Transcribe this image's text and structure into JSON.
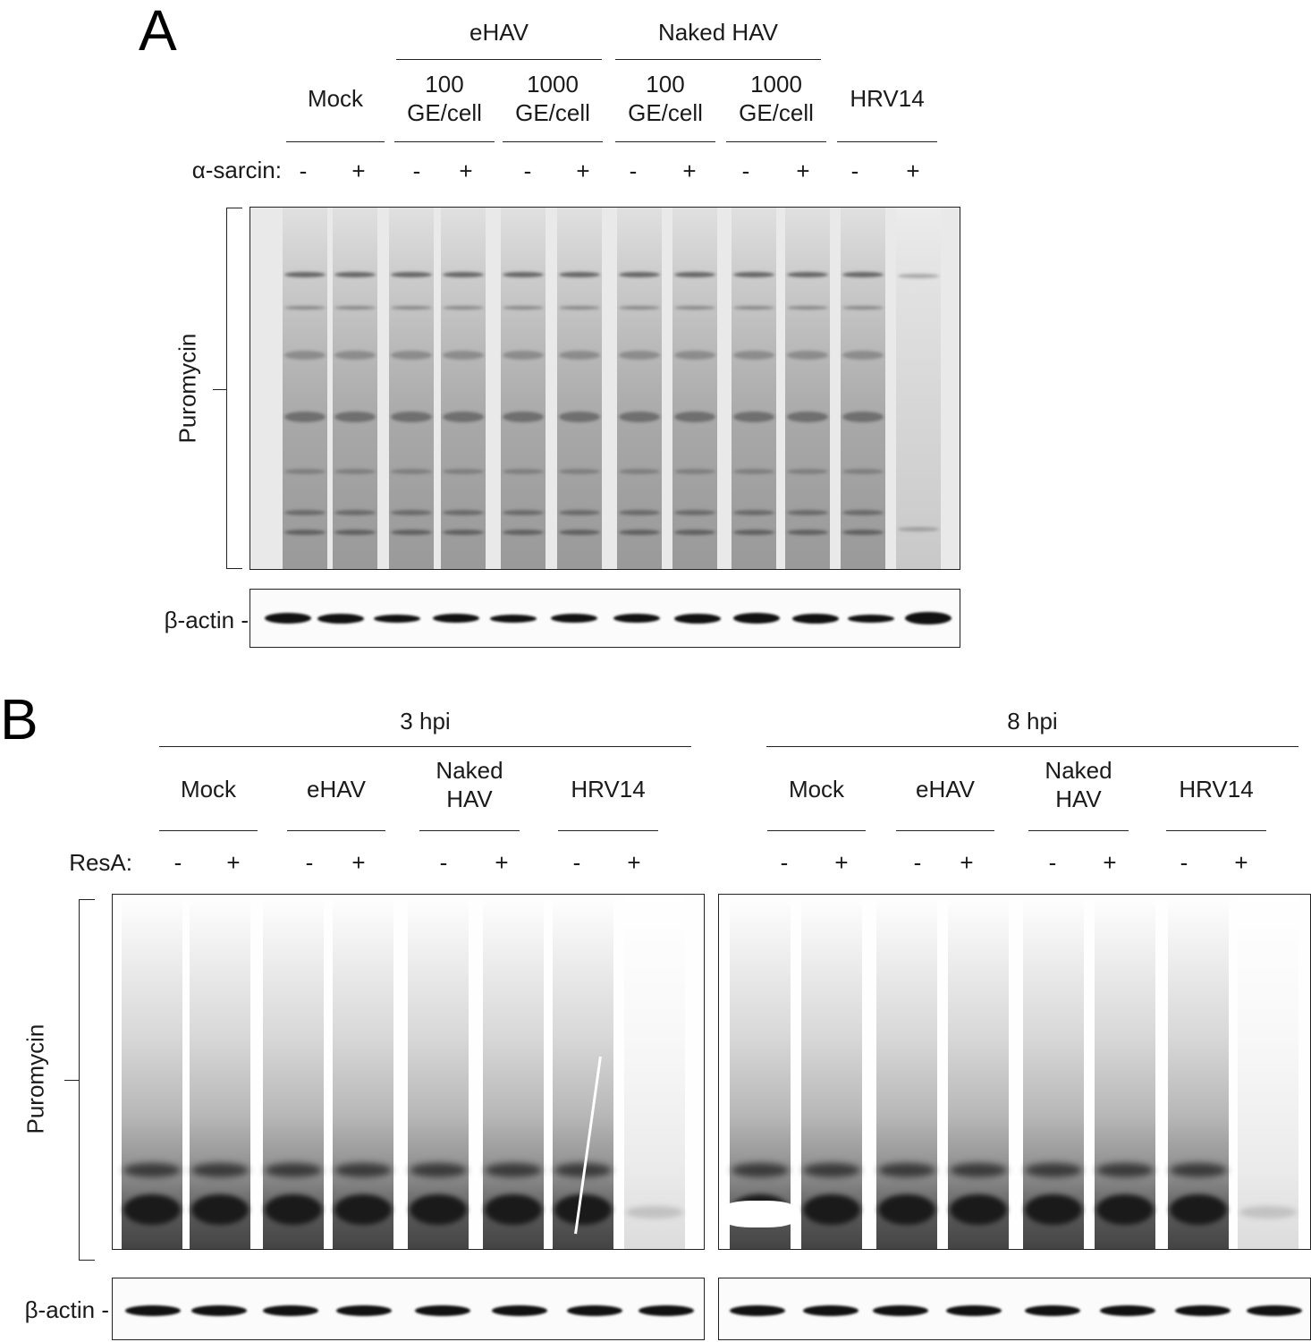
{
  "panel_a": {
    "letter": "A",
    "groups": [
      {
        "id": "ehav",
        "label": "eHAV"
      },
      {
        "id": "naked",
        "label": "Naked  HAV"
      }
    ],
    "conditions": [
      {
        "label": "Mock"
      },
      {
        "label": "100\nGE/cell"
      },
      {
        "label": "1000\nGE/cell"
      },
      {
        "label": "100\nGE/cell"
      },
      {
        "label": "1000\nGE/cell"
      },
      {
        "label": "HRV14"
      }
    ],
    "treatment_label": "α-sarcin:",
    "treatment_marks": [
      "-",
      "+",
      "-",
      "+",
      "-",
      "+",
      "-",
      "+",
      "-",
      "+",
      "-",
      "+"
    ],
    "blot_label": "Puromycin",
    "loading_label": "β-actin -"
  },
  "panel_b": {
    "letter": "B",
    "timepoints": [
      {
        "label": "3 hpi"
      },
      {
        "label": "8 hpi"
      }
    ],
    "conditions": [
      {
        "label": "Mock"
      },
      {
        "label": "eHAV"
      },
      {
        "label": "Naked\nHAV"
      },
      {
        "label": "HRV14"
      },
      {
        "label": "Mock"
      },
      {
        "label": "eHAV"
      },
      {
        "label": "Naked\nHAV"
      },
      {
        "label": "HRV14"
      }
    ],
    "treatment_label": "ResA:",
    "treatment_marks": [
      "-",
      "+",
      "-",
      "+",
      "-",
      "+",
      "-",
      "+",
      "-",
      "+",
      "-",
      "+",
      "-",
      "+",
      "-",
      "+"
    ],
    "blot_label": "Puromycin",
    "loading_label": "β-actin -"
  }
}
